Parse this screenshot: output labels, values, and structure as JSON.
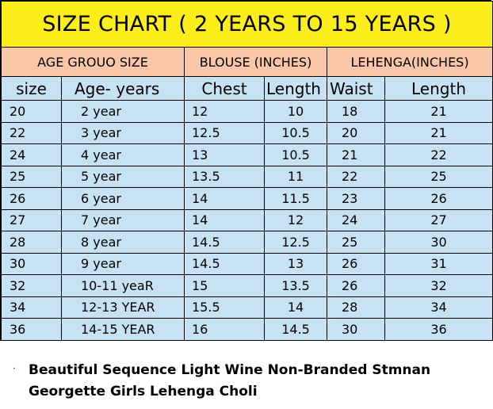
{
  "title": "SIZE CHART ( 2 YEARS TO 15 YEARS )",
  "groups": {
    "age": "AGE GROUO SIZE",
    "blouse": "BLOUSE (INCHES)",
    "lehenga": "LEHENGA(INCHES)"
  },
  "headers": {
    "size": "size",
    "age": "Age-  years",
    "chest": "Chest",
    "blouse_length": "Length",
    "waist": "Waist",
    "lehenga_length": "Length"
  },
  "rows": [
    {
      "size": "20",
      "age": "2 year",
      "chest": "12",
      "blouse_length": "10",
      "waist": "18",
      "lehenga_length": "21"
    },
    {
      "size": "22",
      "age": "3 year",
      "chest": "12.5",
      "blouse_length": "10.5",
      "waist": "20",
      "lehenga_length": "21"
    },
    {
      "size": "24",
      "age": "4 year",
      "chest": "13",
      "blouse_length": "10.5",
      "waist": "21",
      "lehenga_length": "22"
    },
    {
      "size": "25",
      "age": "5 year",
      "chest": "13.5",
      "blouse_length": "11",
      "waist": "22",
      "lehenga_length": "25"
    },
    {
      "size": "26",
      "age": "6 year",
      "chest": "14",
      "blouse_length": "11.5",
      "waist": "23",
      "lehenga_length": "26"
    },
    {
      "size": "27",
      "age": "7 year",
      "chest": "14",
      "blouse_length": "12",
      "waist": "24",
      "lehenga_length": "27"
    },
    {
      "size": "28",
      "age": "8 year",
      "chest": "14.5",
      "blouse_length": "12.5",
      "waist": "25",
      "lehenga_length": "30"
    },
    {
      "size": "30",
      "age": "9 year",
      "chest": "14.5",
      "blouse_length": "13",
      "waist": "26",
      "lehenga_length": "31"
    },
    {
      "size": "32",
      "age": "10-11 yeaR",
      "chest": "15",
      "blouse_length": "13.5",
      "waist": "26",
      "lehenga_length": "32"
    },
    {
      "size": "34",
      "age": "12-13 YEAR",
      "chest": "15.5",
      "blouse_length": "14",
      "waist": "28",
      "lehenga_length": "34"
    },
    {
      "size": "36",
      "age": "14-15 YEAR",
      "chest": "16",
      "blouse_length": "14.5",
      "waist": "30",
      "lehenga_length": "36"
    }
  ],
  "caption": {
    "bullet": "·",
    "line1": "Beautiful Sequence Light Wine Non-Branded Stmnan",
    "line2": "Georgette Girls Lehenga Choli"
  },
  "colors": {
    "title_bg": "#fbee1a",
    "group_bg": "#f9c7a8",
    "body_bg": "#c7e3f3"
  }
}
